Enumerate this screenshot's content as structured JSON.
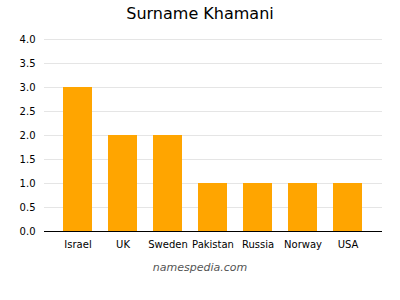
{
  "chart_data": {
    "type": "bar",
    "title": "Surname Khamani",
    "categories": [
      "Israel",
      "UK",
      "Sweden",
      "Pakistan",
      "Russia",
      "Norway",
      "USA"
    ],
    "values": [
      3,
      2,
      2,
      1,
      1,
      1,
      1
    ],
    "color": "#FFA500",
    "ylim": [
      0,
      4
    ],
    "yticks": [
      0,
      0.5,
      1,
      1.5,
      2,
      2.5,
      3,
      3.5,
      4
    ],
    "grid": true,
    "caption": "namespedia.com"
  }
}
